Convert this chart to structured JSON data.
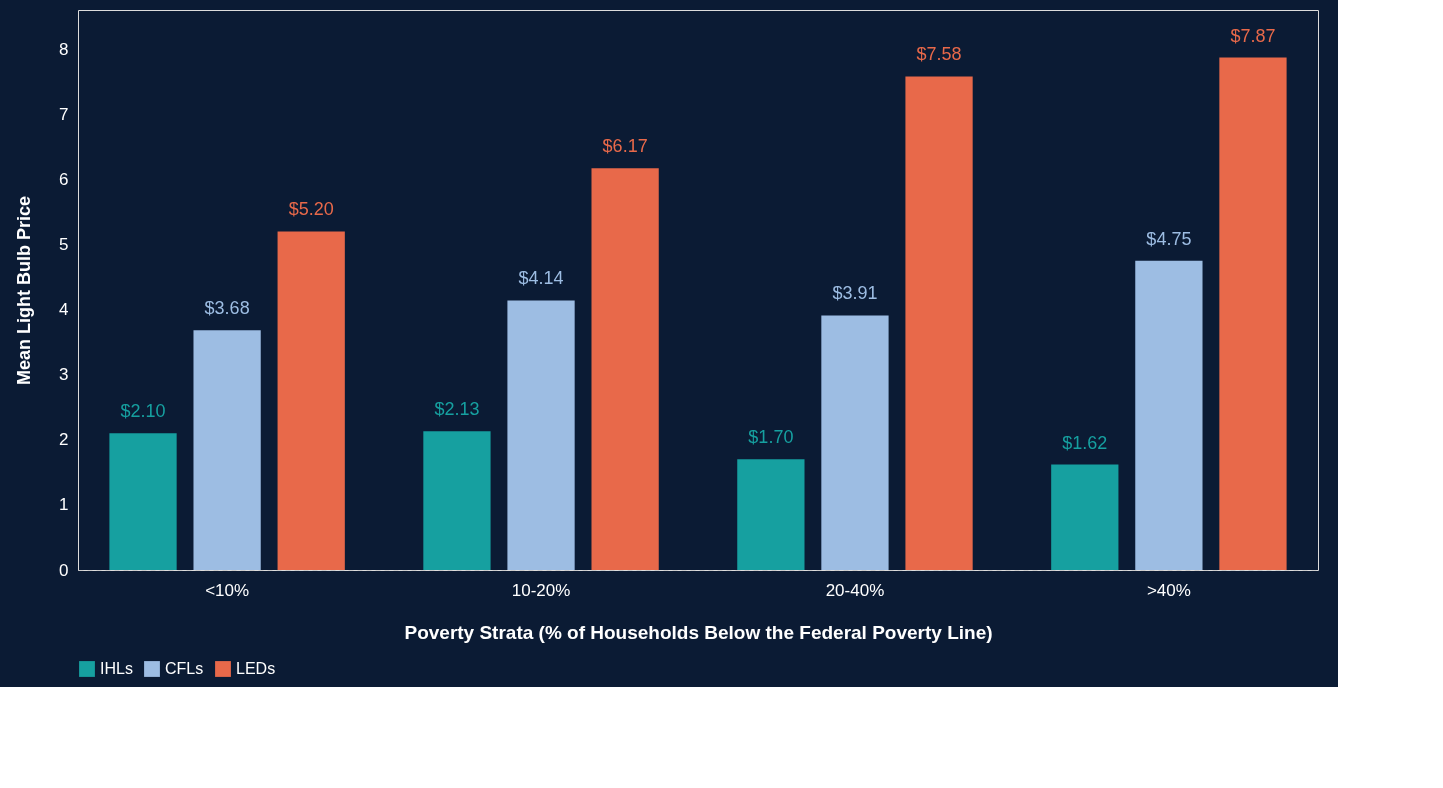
{
  "chart_data": {
    "type": "bar",
    "xlabel": "Poverty Strata (% of Households Below the Federal Poverty Line)",
    "ylabel": "Mean Light Bulb Price",
    "categories": [
      "<10%",
      "10-20%",
      "20-40%",
      ">40%"
    ],
    "series": [
      {
        "name": "IHLs",
        "color": "#16a0a0",
        "values": [
          2.1,
          2.13,
          1.7,
          1.62
        ],
        "value_labels": [
          "$2.10",
          "$2.13",
          "$1.70",
          "$1.62"
        ]
      },
      {
        "name": "CFLs",
        "color": "#9dbde3",
        "values": [
          3.68,
          4.14,
          3.91,
          4.75
        ],
        "value_labels": [
          "$3.68",
          "$4.14",
          "$3.91",
          "$4.75"
        ]
      },
      {
        "name": "LEDs",
        "color": "#e8694a",
        "values": [
          5.2,
          6.17,
          7.58,
          7.87
        ],
        "value_labels": [
          "$5.20",
          "$6.17",
          "$7.58",
          "$7.87"
        ]
      }
    ],
    "ylim": [
      0,
      8.6
    ],
    "yticks": [
      0,
      1,
      2,
      3,
      4,
      5,
      6,
      7,
      8
    ],
    "grid": false,
    "legend": "bottom"
  }
}
